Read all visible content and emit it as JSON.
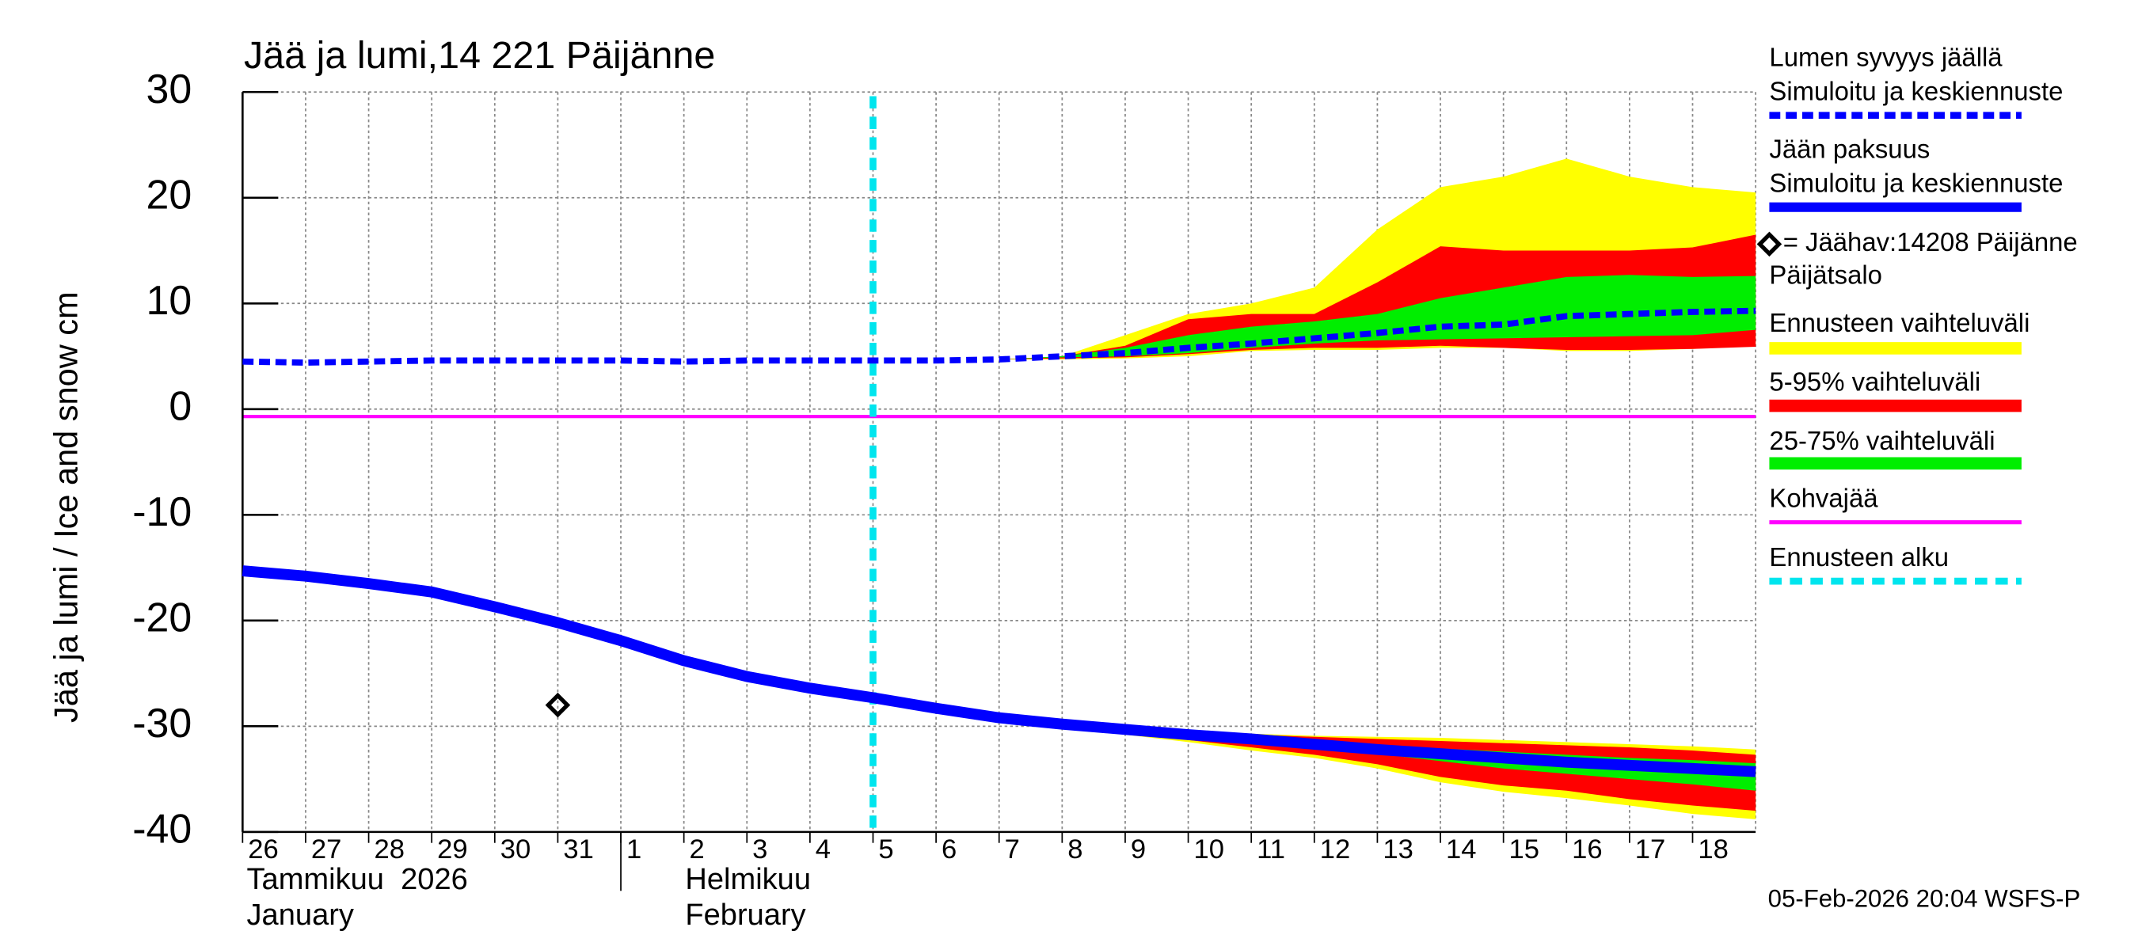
{
  "chart_data": {
    "type": "line",
    "title": "Jää ja lumi,14 221 Päijänne",
    "y_label": "Jää ja lumi / Ice and snow    cm",
    "ylim": [
      -40,
      30
    ],
    "yticks": [
      -40,
      -30,
      -20,
      -10,
      0,
      10,
      20,
      30
    ],
    "xlim": [
      "2026-01-26",
      "2026-02-19"
    ],
    "xticks": [
      {
        "value": "2026-01-26",
        "label": "26"
      },
      {
        "value": "2026-01-27",
        "label": "27"
      },
      {
        "value": "2026-01-28",
        "label": "28"
      },
      {
        "value": "2026-01-29",
        "label": "29"
      },
      {
        "value": "2026-01-30",
        "label": "30"
      },
      {
        "value": "2026-01-31",
        "label": "31"
      },
      {
        "value": "2026-02-01",
        "label": "1"
      },
      {
        "value": "2026-02-02",
        "label": "2"
      },
      {
        "value": "2026-02-03",
        "label": "3"
      },
      {
        "value": "2026-02-04",
        "label": "4"
      },
      {
        "value": "2026-02-05",
        "label": "5"
      },
      {
        "value": "2026-02-06",
        "label": "6"
      },
      {
        "value": "2026-02-07",
        "label": "7"
      },
      {
        "value": "2026-02-08",
        "label": "8"
      },
      {
        "value": "2026-02-09",
        "label": "9"
      },
      {
        "value": "2026-02-10",
        "label": "10"
      },
      {
        "value": "2026-02-11",
        "label": "11"
      },
      {
        "value": "2026-02-12",
        "label": "12"
      },
      {
        "value": "2026-02-13",
        "label": "13"
      },
      {
        "value": "2026-02-14",
        "label": "14"
      },
      {
        "value": "2026-02-15",
        "label": "15"
      },
      {
        "value": "2026-02-16",
        "label": "16"
      },
      {
        "value": "2026-02-17",
        "label": "17"
      },
      {
        "value": "2026-02-18",
        "label": "18"
      }
    ],
    "grid": true,
    "month_labels": [
      "Tammikuu  2026",
      "January",
      "Helmikuu",
      "February"
    ],
    "footer": "05-Feb-2026 20:04 WSFS-P",
    "x": [
      "2026-01-26",
      "2026-01-27",
      "2026-01-28",
      "2026-01-29",
      "2026-01-30",
      "2026-01-31",
      "2026-02-01",
      "2026-02-02",
      "2026-02-03",
      "2026-02-04",
      "2026-02-05",
      "2026-02-06",
      "2026-02-07",
      "2026-02-08",
      "2026-02-09",
      "2026-02-10",
      "2026-02-11",
      "2026-02-12",
      "2026-02-13",
      "2026-02-14",
      "2026-02-15",
      "2026-02-16",
      "2026-02-17",
      "2026-02-18",
      "2026-02-19"
    ],
    "series": [
      {
        "name": [
          "Lumen syvyys jäällä",
          "Simuloitu ja keskiennuste"
        ],
        "color": "#0000ff",
        "dashed": true,
        "values": [
          4.5,
          4.4,
          4.5,
          4.6,
          4.6,
          4.6,
          4.6,
          4.5,
          4.6,
          4.6,
          4.6,
          4.6,
          4.7,
          5.0,
          5.3,
          5.8,
          6.2,
          6.7,
          7.2,
          7.8,
          8.0,
          8.8,
          9.0,
          9.2,
          9.3
        ]
      },
      {
        "name": [
          "Jään paksuus",
          "Simuloitu ja keskiennuste"
        ],
        "color": "#0000ff",
        "dashed": false,
        "values": [
          -15.3,
          -15.8,
          -16.5,
          -17.3,
          -18.7,
          -20.2,
          -21.9,
          -23.8,
          -25.3,
          -26.4,
          -27.3,
          -28.3,
          -29.2,
          -29.8,
          -30.3,
          -30.8,
          -31.2,
          -31.7,
          -32.2,
          -32.6,
          -33.0,
          -33.4,
          -33.7,
          -34.0,
          -34.3
        ]
      },
      {
        "name": [
          "= Jäähav:14208 Päijänne",
          "Päijätsalo"
        ],
        "color": "#000000",
        "marker": "diamond",
        "x": [
          "2026-01-31"
        ],
        "values": [
          -28
        ]
      }
    ],
    "bands": {
      "x": [
        "2026-02-07",
        "2026-02-08",
        "2026-02-09",
        "2026-02-10",
        "2026-02-11",
        "2026-02-12",
        "2026-02-13",
        "2026-02-14",
        "2026-02-15",
        "2026-02-16",
        "2026-02-17",
        "2026-02-18",
        "2026-02-19"
      ],
      "ranges": [
        {
          "name": "Ennusteen vaihteluväli",
          "color": "#ffff00",
          "snow_high": [
            4.7,
            5.0,
            7.0,
            9.0,
            10.0,
            11.5,
            17.0,
            21.0,
            22.0,
            23.7,
            22.0,
            21.0,
            20.5
          ],
          "snow_low": [
            4.7,
            4.7,
            4.8,
            5.0,
            5.5,
            5.6,
            5.6,
            5.8,
            5.8,
            5.5,
            5.5,
            5.7,
            6.0
          ],
          "ice_high": [
            -29.2,
            -29.8,
            -30.2,
            -30.5,
            -30.7,
            -30.9,
            -31.0,
            -31.1,
            -31.3,
            -31.5,
            -31.7,
            -31.9,
            -32.2
          ],
          "ice_low": [
            -29.3,
            -30.1,
            -30.8,
            -31.5,
            -32.3,
            -33.0,
            -34.0,
            -35.3,
            -36.2,
            -36.8,
            -37.5,
            -38.3,
            -38.8
          ]
        },
        {
          "name": "5-95% vaihteluväli",
          "color": "#ff0000",
          "snow_high": [
            4.7,
            5.0,
            6.0,
            8.5,
            9.0,
            9.0,
            12.0,
            15.4,
            15.0,
            15.0,
            15.0,
            15.3,
            16.5
          ],
          "snow_low": [
            4.7,
            4.8,
            4.9,
            5.2,
            5.6,
            5.8,
            5.8,
            6.0,
            5.8,
            5.6,
            5.6,
            5.7,
            5.9
          ],
          "ice_high": [
            -29.2,
            -29.8,
            -30.3,
            -30.6,
            -30.8,
            -31.0,
            -31.2,
            -31.4,
            -31.6,
            -31.8,
            -32.0,
            -32.3,
            -32.7
          ],
          "ice_low": [
            -29.3,
            -30.0,
            -30.6,
            -31.3,
            -32.0,
            -32.7,
            -33.6,
            -34.8,
            -35.6,
            -36.1,
            -36.9,
            -37.5,
            -38.0
          ]
        },
        {
          "name": "25-75% vaihteluväli",
          "color": "#00ee00",
          "snow_high": [
            4.7,
            5.0,
            5.8,
            7.0,
            7.8,
            8.3,
            9.0,
            10.5,
            11.5,
            12.5,
            12.7,
            12.5,
            12.6
          ],
          "snow_low": [
            4.7,
            4.9,
            5.0,
            5.3,
            5.8,
            6.2,
            6.5,
            6.6,
            6.7,
            6.8,
            6.9,
            7.0,
            7.5
          ],
          "ice_high": [
            -29.2,
            -29.8,
            -30.3,
            -30.7,
            -31.0,
            -31.4,
            -31.8,
            -32.1,
            -32.4,
            -32.7,
            -33.0,
            -33.2,
            -33.5
          ],
          "ice_low": [
            -29.2,
            -29.9,
            -30.4,
            -31.0,
            -31.5,
            -32.0,
            -32.6,
            -33.3,
            -34.0,
            -34.5,
            -35.0,
            -35.5,
            -36.1
          ]
        }
      ]
    },
    "reference": {
      "name": "Kohvajää",
      "color": "#ff00ff",
      "value": -0.7
    },
    "forecast_start": {
      "name": "Ennusteen alku",
      "color": "#00e5ee",
      "x": "2026-02-05"
    }
  }
}
